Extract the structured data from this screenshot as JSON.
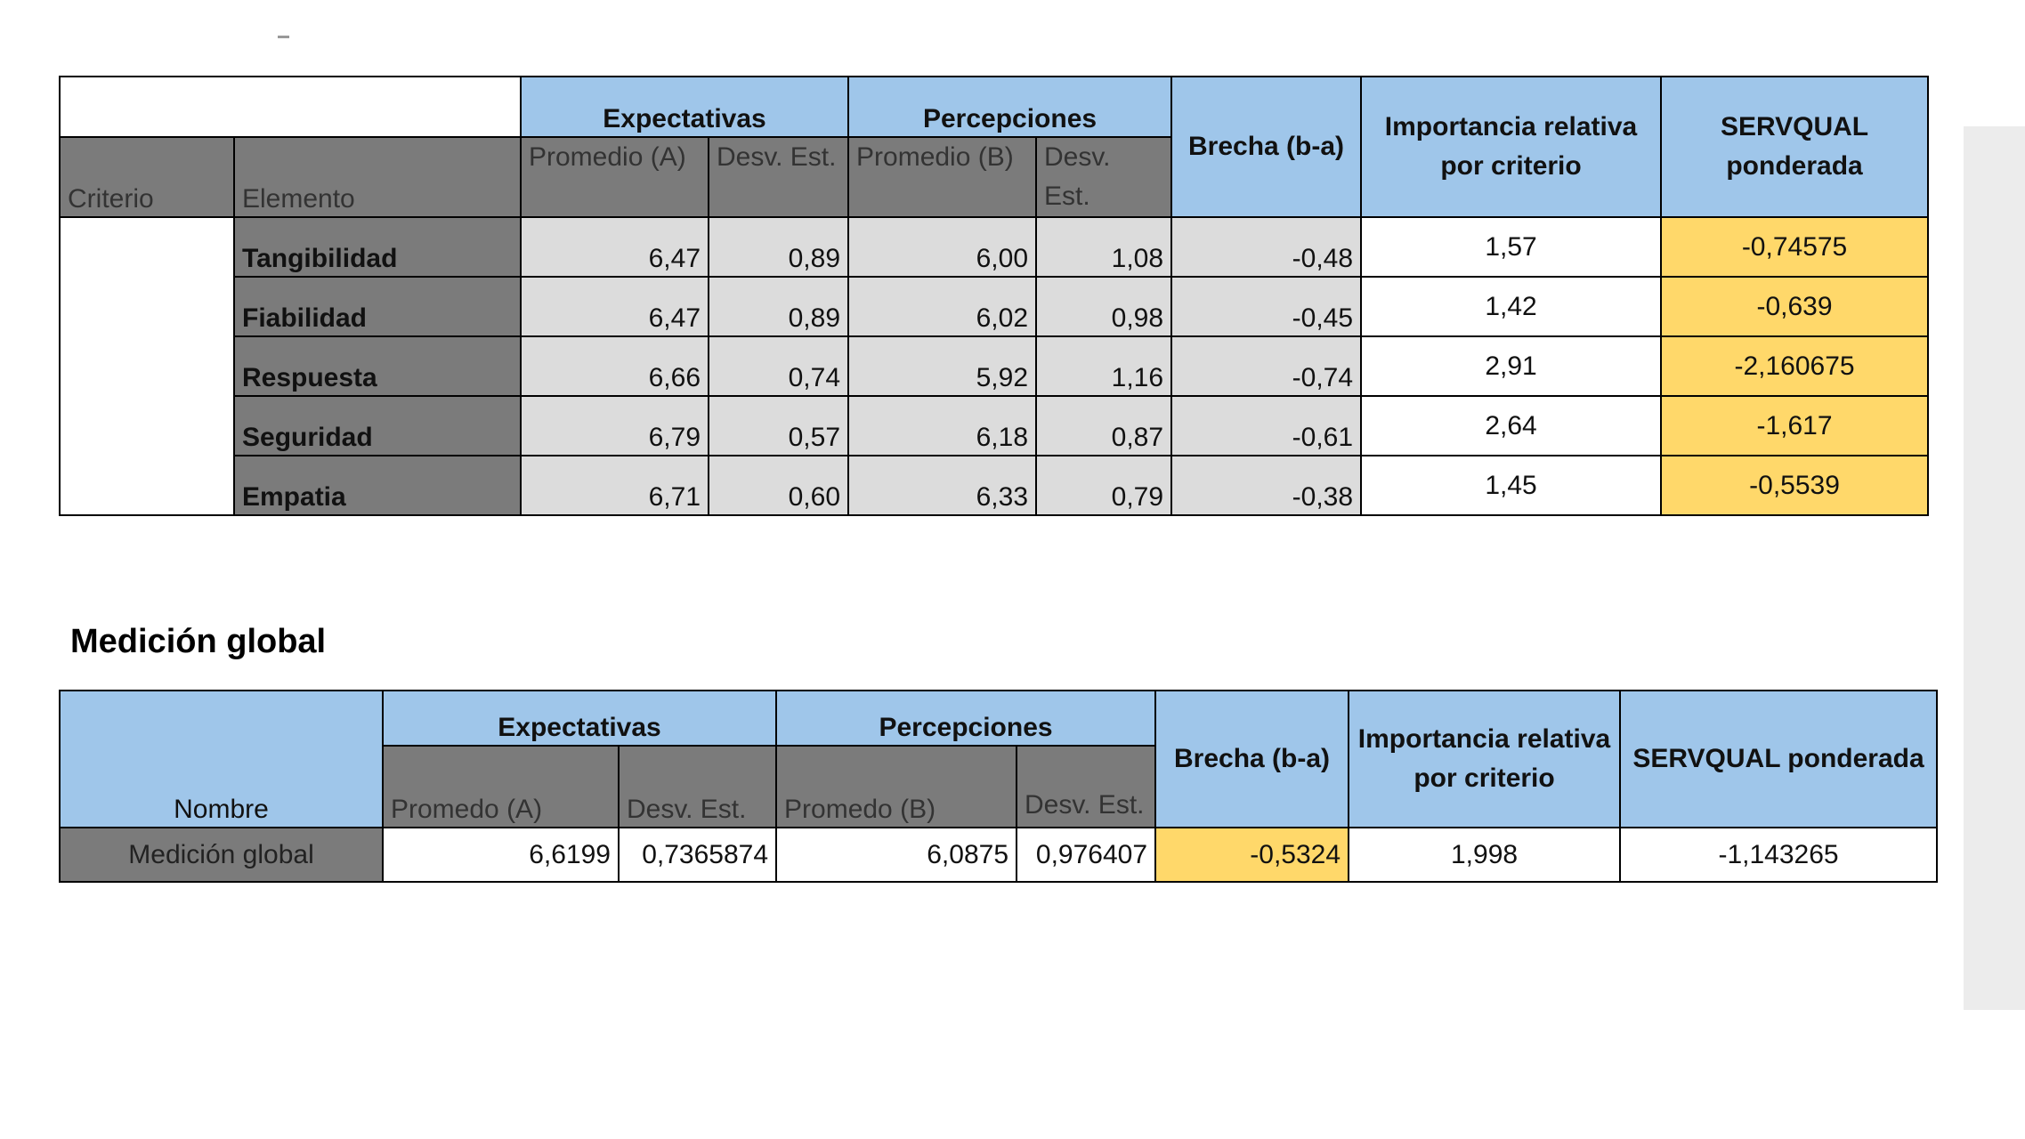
{
  "criteria_table": {
    "headers": {
      "expectativas": "Expectativas",
      "percepciones": "Percepciones",
      "brecha": "Brecha (b-a)",
      "importancia": "Importancia relativa por criterio",
      "servqual": "SERVQUAL ponderada",
      "criterio": "Criterio",
      "elemento": "Elemento",
      "promedio_a": "Promedio (A)",
      "desv_est_a": "Desv. Est.",
      "promedio_b": "Promedio (B)",
      "desv_est_b": "Desv. Est."
    },
    "rows": [
      {
        "elemento": "Tangibilidad",
        "promedio_a": "6,47",
        "desv_a": "0,89",
        "promedio_b": "6,00",
        "desv_b": "1,08",
        "brecha": "-0,48",
        "importancia": "1,57",
        "servqual": "-0,74575"
      },
      {
        "elemento": "Fiabilidad",
        "promedio_a": "6,47",
        "desv_a": "0,89",
        "promedio_b": "6,02",
        "desv_b": "0,98",
        "brecha": "-0,45",
        "importancia": "1,42",
        "servqual": "-0,639"
      },
      {
        "elemento": "Respuesta",
        "promedio_a": "6,66",
        "desv_a": "0,74",
        "promedio_b": "5,92",
        "desv_b": "1,16",
        "brecha": "-0,74",
        "importancia": "2,91",
        "servqual": "-2,160675"
      },
      {
        "elemento": "Seguridad",
        "promedio_a": "6,79",
        "desv_a": "0,57",
        "promedio_b": "6,18",
        "desv_b": "0,87",
        "brecha": "-0,61",
        "importancia": "2,64",
        "servqual": "-1,617"
      },
      {
        "elemento": "Empatia",
        "promedio_a": "6,71",
        "desv_a": "0,60",
        "promedio_b": "6,33",
        "desv_b": "0,79",
        "brecha": "-0,38",
        "importancia": "1,45",
        "servqual": "-0,5539"
      }
    ]
  },
  "global_section": {
    "title": "Medición global",
    "headers": {
      "nombre": "Nombre",
      "expectativas": "Expectativas",
      "percepciones": "Percepciones",
      "brecha": "Brecha (b-a)",
      "importancia": "Importancia relativa por criterio",
      "servqual": "SERVQUAL ponderada",
      "promedo_a": "Promedo (A)",
      "desv_est_a": "Desv. Est.",
      "promedo_b": "Promedo (B)",
      "desv_est_b": "Desv. Est."
    },
    "row": {
      "nombre": "Medición global",
      "promedo_a": "6,6199",
      "desv_a": "0,7365874",
      "promedo_b": "6,0875",
      "desv_b": "0,976407",
      "brecha": "-0,5324",
      "importancia": "1,998",
      "servqual": "-1,143265"
    }
  },
  "colors": {
    "header_blue": "#9fc6ea",
    "header_gray": "#7b7b7b",
    "cell_light_gray": "#dcdcdc",
    "highlight_yellow": "#ffd86a"
  }
}
